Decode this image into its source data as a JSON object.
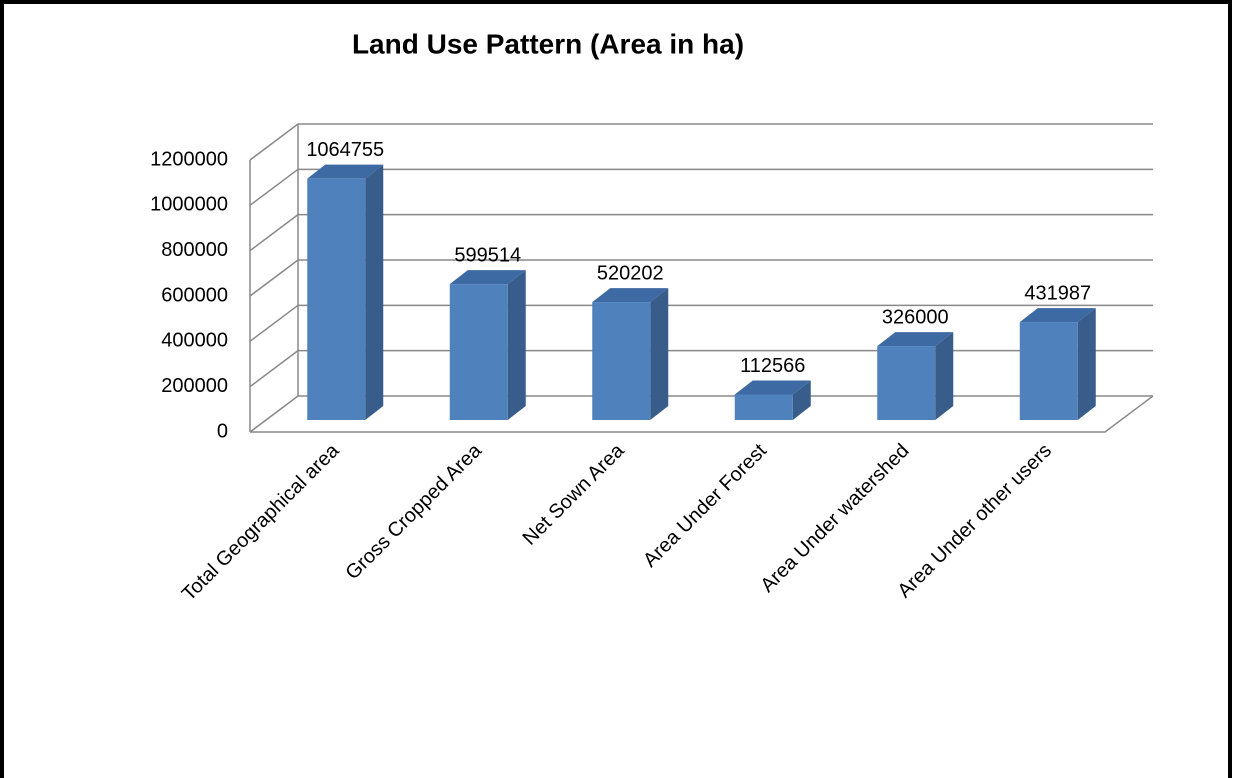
{
  "chart_data": {
    "type": "bar",
    "title": "Land Use Pattern (Area in ha)",
    "categories": [
      "Total Geographical area",
      "Gross Cropped Area",
      "Net Sown Area",
      "Area Under Forest",
      "Area Under watershed",
      "Area Under other users"
    ],
    "values": [
      1064755,
      599514,
      520202,
      112566,
      326000,
      431987
    ],
    "color": "#4f81bd",
    "ylim": [
      0,
      1200000
    ],
    "yticks": [
      0,
      200000,
      400000,
      600000,
      800000,
      1000000,
      1200000
    ],
    "grid": true
  }
}
